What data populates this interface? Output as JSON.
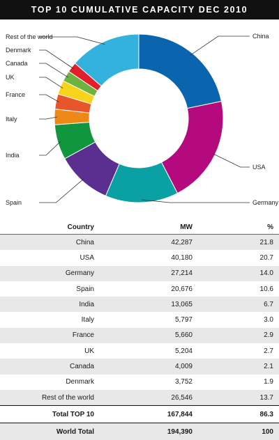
{
  "title": "TOP 10 CUMULATIVE CAPACITY DEC 2010",
  "chart_data": {
    "type": "pie",
    "variant": "donut",
    "categories": [
      "China",
      "USA",
      "Germany",
      "Spain",
      "India",
      "Italy",
      "France",
      "UK",
      "Canada",
      "Denmark",
      "Rest of the world"
    ],
    "values": [
      42287,
      40180,
      27214,
      20676,
      13065,
      5797,
      5660,
      5204,
      4009,
      3752,
      26546
    ],
    "percent": [
      21.8,
      20.7,
      14.0,
      10.6,
      6.7,
      3.0,
      2.9,
      2.7,
      2.1,
      1.9,
      13.7
    ],
    "colors": [
      "#0a64ae",
      "#b5097e",
      "#0aa1a5",
      "#5a2f8f",
      "#10963c",
      "#ee8816",
      "#e9552a",
      "#f7d319",
      "#6cb33f",
      "#e2202c",
      "#34b2de"
    ]
  },
  "table": {
    "headers": [
      "Country",
      "MW",
      "%"
    ],
    "rows": [
      [
        "China",
        "42,287",
        "21.8"
      ],
      [
        "USA",
        "40,180",
        "20.7"
      ],
      [
        "Germany",
        "27,214",
        "14.0"
      ],
      [
        "Spain",
        "20,676",
        "10.6"
      ],
      [
        "India",
        "13,065",
        "6.7"
      ],
      [
        "Italy",
        "5,797",
        "3.0"
      ],
      [
        "France",
        "5,660",
        "2.9"
      ],
      [
        "UK",
        "5,204",
        "2.7"
      ],
      [
        "Canada",
        "4,009",
        "2.1"
      ],
      [
        "Denmark",
        "3,752",
        "1.9"
      ],
      [
        "Rest of the world",
        "26,546",
        "13.7"
      ]
    ],
    "total_top10": [
      "Total TOP 10",
      "167,844",
      "86.3"
    ],
    "world_total": [
      "World Total",
      "194,390",
      "100"
    ]
  }
}
